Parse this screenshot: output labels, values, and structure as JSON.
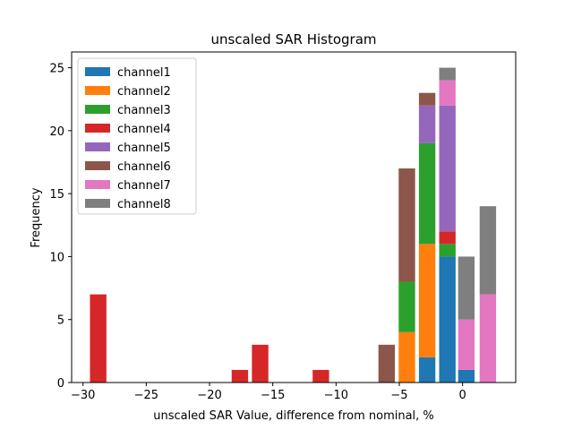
{
  "chart_data": {
    "type": "bar",
    "stacked": true,
    "title": "unscaled SAR Histogram",
    "xlabel": "unscaled SAR Value, difference from nominal, %",
    "ylabel": "Frequency",
    "xlim": [
      -30.9,
      4.2
    ],
    "ylim": [
      0,
      26.25
    ],
    "xticks": [
      -30,
      -25,
      -20,
      -15,
      -10,
      -5,
      0
    ],
    "xtick_labels": [
      "−30",
      "−25",
      "−20",
      "−15",
      "−10",
      "−5",
      "0"
    ],
    "yticks": [
      0,
      5,
      10,
      15,
      20,
      25
    ],
    "legend_position": "upper-left",
    "bar_width": 1.3,
    "series": [
      {
        "name": "channel1",
        "color": "#1f77b4",
        "bars": [
          {
            "x": -2.8,
            "bottom": 0,
            "height": 2
          },
          {
            "x": -1.2,
            "bottom": 0,
            "height": 10
          },
          {
            "x": 0.3,
            "bottom": 0,
            "height": 1
          }
        ]
      },
      {
        "name": "channel2",
        "color": "#ff7f0e",
        "bars": [
          {
            "x": -4.4,
            "bottom": 0,
            "height": 4
          },
          {
            "x": -2.8,
            "bottom": 2,
            "height": 9
          }
        ]
      },
      {
        "name": "channel3",
        "color": "#2ca02c",
        "bars": [
          {
            "x": -4.4,
            "bottom": 4,
            "height": 4
          },
          {
            "x": -2.8,
            "bottom": 11,
            "height": 8
          },
          {
            "x": -1.2,
            "bottom": 10,
            "height": 1
          }
        ]
      },
      {
        "name": "channel4",
        "color": "#d62728",
        "bars": [
          {
            "x": -28.8,
            "bottom": 0,
            "height": 7
          },
          {
            "x": -17.6,
            "bottom": 0,
            "height": 1
          },
          {
            "x": -16.0,
            "bottom": 0,
            "height": 3
          },
          {
            "x": -11.2,
            "bottom": 0,
            "height": 1
          },
          {
            "x": -1.2,
            "bottom": 11,
            "height": 1
          }
        ]
      },
      {
        "name": "channel5",
        "color": "#9467bd",
        "bars": [
          {
            "x": -2.8,
            "bottom": 19,
            "height": 3
          },
          {
            "x": -1.2,
            "bottom": 12,
            "height": 10
          }
        ]
      },
      {
        "name": "channel6",
        "color": "#8c564b",
        "bars": [
          {
            "x": -6.0,
            "bottom": 0,
            "height": 3
          },
          {
            "x": -4.4,
            "bottom": 8,
            "height": 9
          },
          {
            "x": -2.8,
            "bottom": 22,
            "height": 1
          }
        ]
      },
      {
        "name": "channel7",
        "color": "#e377c2",
        "bars": [
          {
            "x": -1.2,
            "bottom": 22,
            "height": 2
          },
          {
            "x": 0.3,
            "bottom": 1,
            "height": 4
          },
          {
            "x": 2.0,
            "bottom": 0,
            "height": 7
          }
        ]
      },
      {
        "name": "channel8",
        "color": "#7f7f7f",
        "bars": [
          {
            "x": -1.2,
            "bottom": 24,
            "height": 1
          },
          {
            "x": 0.3,
            "bottom": 5,
            "height": 5
          },
          {
            "x": 2.0,
            "bottom": 7,
            "height": 7
          }
        ]
      }
    ]
  }
}
